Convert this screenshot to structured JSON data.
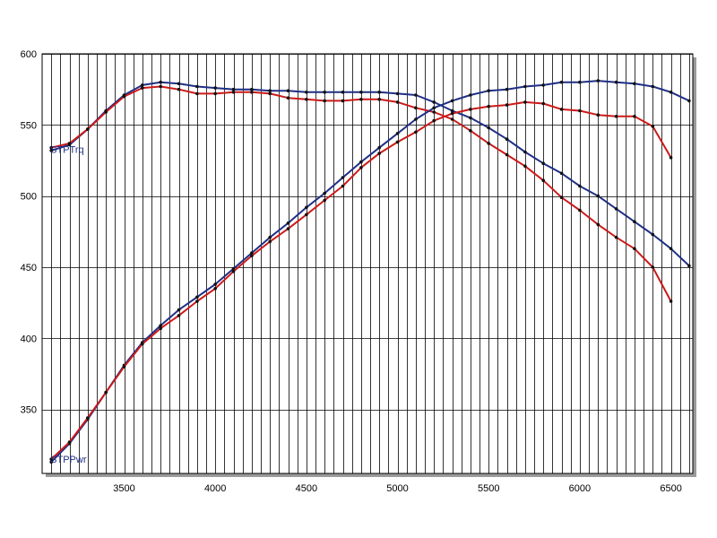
{
  "chart_data": {
    "type": "line",
    "title": "",
    "xlabel": "",
    "ylabel": "",
    "xlim": [
      3050,
      6620
    ],
    "ylim": [
      305,
      600
    ],
    "grid": true,
    "x_tick_labels": [
      "3500",
      "4000",
      "4500",
      "5000",
      "5500",
      "6000",
      "6500"
    ],
    "x_ticks": [
      3500,
      4000,
      4500,
      5000,
      5500,
      6000,
      6500
    ],
    "y_tick_labels": [
      "350",
      "400",
      "450",
      "500",
      "550",
      "600"
    ],
    "y_ticks": [
      350,
      400,
      450,
      500,
      550,
      600
    ],
    "colors": {
      "blue": "#1f2f86",
      "red": "#cc1a1a",
      "grid": "#000000",
      "frame": "#000000"
    },
    "series_labels": [
      {
        "text": "STPTrq",
        "x": 3100,
        "y": 533,
        "color": "#1f2f86"
      },
      {
        "text": "STPPwr",
        "x": 3100,
        "y": 315,
        "color": "#1f2f86"
      }
    ],
    "series": [
      {
        "color": "#1f2f86",
        "x": [
          3100,
          3200,
          3300,
          3400,
          3500,
          3600,
          3700,
          3800,
          3900,
          4000,
          4100,
          4200,
          4300,
          4400,
          4500,
          4600,
          4700,
          4800,
          4900,
          5000,
          5100,
          5200,
          5300,
          5400,
          5500,
          5600,
          5700,
          5800,
          5900,
          6000,
          6100,
          6200,
          6300,
          6400,
          6500,
          6600
        ],
        "y": [
          532,
          536,
          547,
          560,
          571,
          578,
          580,
          579,
          577,
          576,
          575,
          575,
          574,
          574,
          573,
          573,
          573,
          573,
          573,
          572,
          571,
          566,
          560,
          555,
          548,
          540,
          531,
          523,
          516,
          507,
          500,
          491,
          482,
          473,
          463,
          451
        ]
      },
      {
        "color": "#cc1a1a",
        "x": [
          3100,
          3200,
          3300,
          3400,
          3500,
          3600,
          3700,
          3800,
          3900,
          4000,
          4100,
          4200,
          4300,
          4400,
          4500,
          4600,
          4700,
          4800,
          4900,
          5000,
          5100,
          5200,
          5300,
          5400,
          5500,
          5600,
          5700,
          5800,
          5900,
          6000,
          6100,
          6200,
          6300,
          6400,
          6500
        ],
        "y": [
          534,
          537,
          547,
          559,
          570,
          576,
          577,
          575,
          572,
          572,
          573,
          573,
          572,
          569,
          568,
          567,
          567,
          568,
          568,
          566,
          562,
          559,
          554,
          546,
          537,
          529,
          521,
          511,
          499,
          490,
          480,
          471,
          463,
          450,
          426
        ]
      },
      {
        "color": "#1f2f86",
        "x": [
          3100,
          3200,
          3300,
          3400,
          3500,
          3600,
          3700,
          3800,
          3900,
          4000,
          4100,
          4200,
          4300,
          4400,
          4500,
          4600,
          4700,
          4800,
          4900,
          5000,
          5100,
          5200,
          5300,
          5400,
          5500,
          5600,
          5700,
          5800,
          5900,
          6000,
          6100,
          6200,
          6300,
          6400,
          6500,
          6600
        ],
        "y": [
          313,
          326,
          343,
          362,
          381,
          397,
          409,
          420,
          429,
          438,
          449,
          460,
          471,
          481,
          492,
          502,
          513,
          524,
          534,
          544,
          554,
          562,
          567,
          571,
          574,
          575,
          577,
          578,
          580,
          580,
          581,
          580,
          579,
          577,
          573,
          567
        ]
      },
      {
        "color": "#cc1a1a",
        "x": [
          3100,
          3200,
          3300,
          3400,
          3500,
          3600,
          3700,
          3800,
          3900,
          4000,
          4100,
          4200,
          4300,
          4400,
          4500,
          4600,
          4700,
          4800,
          4900,
          5000,
          5100,
          5200,
          5300,
          5400,
          5500,
          5600,
          5700,
          5800,
          5900,
          6000,
          6100,
          6200,
          6300,
          6400,
          6500
        ],
        "y": [
          315,
          327,
          344,
          362,
          380,
          396,
          407,
          416,
          426,
          435,
          447,
          458,
          468,
          477,
          487,
          497,
          507,
          520,
          530,
          538,
          545,
          553,
          558,
          561,
          563,
          564,
          566,
          565,
          561,
          560,
          557,
          556,
          556,
          549,
          527
        ]
      }
    ]
  }
}
